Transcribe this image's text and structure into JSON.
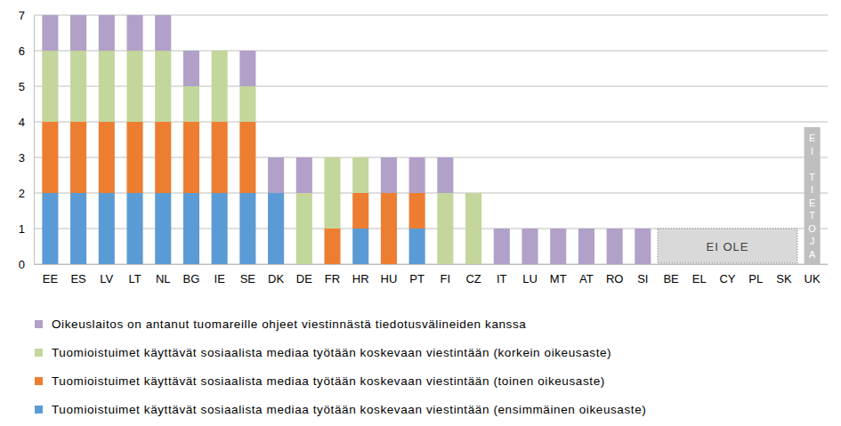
{
  "chart_data": {
    "type": "bar",
    "stacked": true,
    "grid": true,
    "categories": [
      "EE",
      "ES",
      "LV",
      "LT",
      "NL",
      "BG",
      "IE",
      "SE",
      "DK",
      "DE",
      "FR",
      "HR",
      "HU",
      "PT",
      "FI",
      "CZ",
      "IT",
      "LU",
      "MT",
      "AT",
      "RO",
      "SI",
      "BE",
      "EL",
      "CY",
      "PL",
      "SK",
      "UK"
    ],
    "series": [
      {
        "name": "Tuomioistuimet käyttävät sosiaalista mediaa työtään koskevaan viestintään (ensimmäinen oikeusaste)",
        "color": "#5b9bd5",
        "values": [
          2,
          2,
          2,
          2,
          2,
          2,
          2,
          2,
          2,
          0,
          0,
          1,
          0,
          1,
          0,
          0,
          0,
          0,
          0,
          0,
          0,
          0,
          0,
          0,
          0,
          0,
          0,
          null
        ]
      },
      {
        "name": "Tuomioistuimet käyttävät sosiaalista mediaa työtään koskevaan viestintään (toinen oikeusaste)",
        "color": "#ed7d31",
        "values": [
          2,
          2,
          2,
          2,
          2,
          2,
          2,
          2,
          0,
          0,
          1,
          1,
          2,
          1,
          0,
          0,
          0,
          0,
          0,
          0,
          0,
          0,
          0,
          0,
          0,
          0,
          0,
          null
        ]
      },
      {
        "name": "Tuomioistuimet käyttävät sosiaalista mediaa työtään koskevaan viestintään (korkein oikeusaste)",
        "color": "#c3d69b",
        "values": [
          2,
          2,
          2,
          2,
          2,
          1,
          2,
          1,
          0,
          2,
          2,
          1,
          0,
          0,
          2,
          2,
          0,
          0,
          0,
          0,
          0,
          0,
          0,
          0,
          0,
          0,
          0,
          null
        ]
      },
      {
        "name": "Oikeuslaitos on antanut tuomareille ohjeet viestinnästä tiedotusvälineiden kanssa",
        "color": "#b1a0c7",
        "values": [
          1,
          1,
          1,
          1,
          1,
          1,
          0,
          1,
          1,
          1,
          0,
          0,
          1,
          1,
          1,
          0,
          1,
          1,
          1,
          1,
          1,
          1,
          0,
          0,
          0,
          0,
          0,
          null
        ]
      }
    ],
    "ylim": [
      0,
      7
    ],
    "yticks": [
      0,
      1,
      2,
      3,
      4,
      5,
      6,
      7
    ],
    "annotations": [
      {
        "text": "EI OLE",
        "from": "BE",
        "to": "SK"
      },
      {
        "text": "EI TIETOJA",
        "category": "UK"
      }
    ]
  }
}
